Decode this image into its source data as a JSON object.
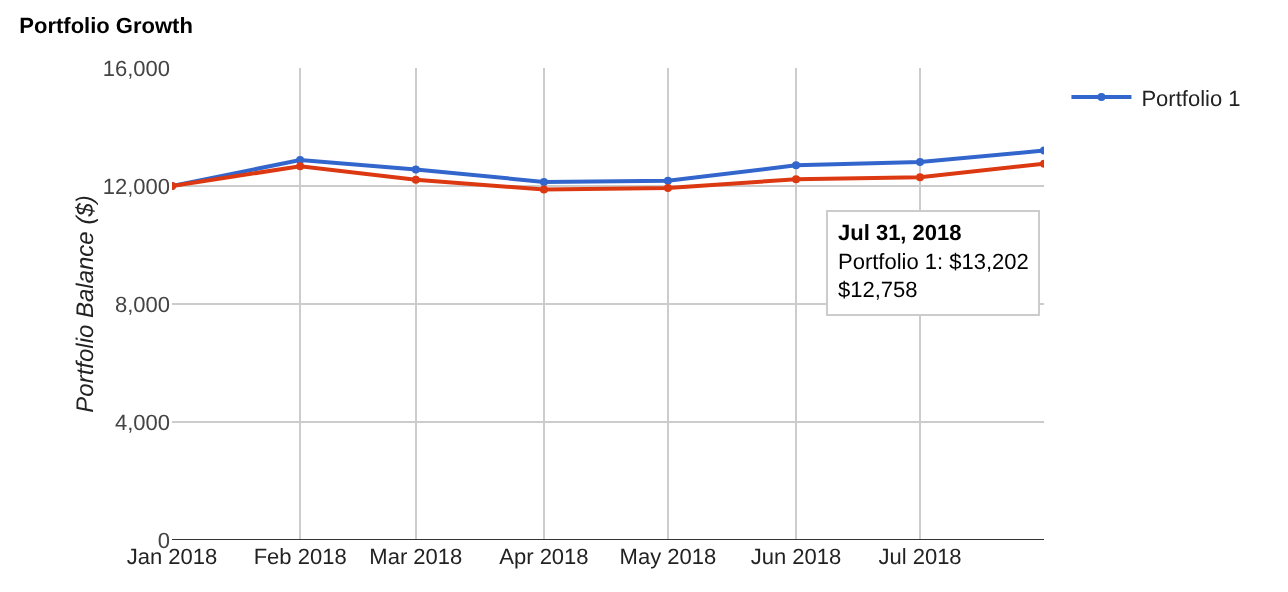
{
  "chart_data": {
    "type": "line",
    "title": "Portfolio Growth",
    "ylabel": "Portfolio Balance ($)",
    "x": [
      "2018-01-01",
      "2018-02-01",
      "2018-03-01",
      "2018-04-01",
      "2018-05-01",
      "2018-06-01",
      "2018-07-01",
      "2018-07-31"
    ],
    "series": [
      {
        "name": "Portfolio 1",
        "color": "#3366cc",
        "values": [
          12000,
          12880,
          12560,
          12140,
          12180,
          12700,
          12810,
          13202
        ]
      },
      {
        "color": "#dc3912",
        "values": [
          12000,
          12670,
          12210,
          11880,
          11930,
          12230,
          12300,
          12758
        ]
      }
    ],
    "ylim": [
      0,
      16000
    ],
    "yticks": [
      {
        "value": 0,
        "label": "0"
      },
      {
        "value": 4000,
        "label": "4,000"
      },
      {
        "value": 8000,
        "label": "8,000"
      },
      {
        "value": 12000,
        "label": "12,000"
      },
      {
        "value": 16000,
        "label": "16,000"
      }
    ],
    "xlim": [
      "2018-01-01",
      "2018-07-31"
    ],
    "xticks": [
      {
        "value": "2018-01-01",
        "label": "Jan 2018"
      },
      {
        "value": "2018-02-01",
        "label": "Feb 2018"
      },
      {
        "value": "2018-03-01",
        "label": "Mar 2018"
      },
      {
        "value": "2018-04-01",
        "label": "Apr 2018"
      },
      {
        "value": "2018-05-01",
        "label": "May 2018"
      },
      {
        "value": "2018-06-01",
        "label": "Jun 2018"
      },
      {
        "value": "2018-07-01",
        "label": "Jul 2018"
      }
    ],
    "annotations": [
      "Jul 31, 2018\nPortfolio 1: $13,202\n$12,758"
    ],
    "grid": true,
    "legend": "top right",
    "marker": "circle",
    "line_style": "solid"
  }
}
